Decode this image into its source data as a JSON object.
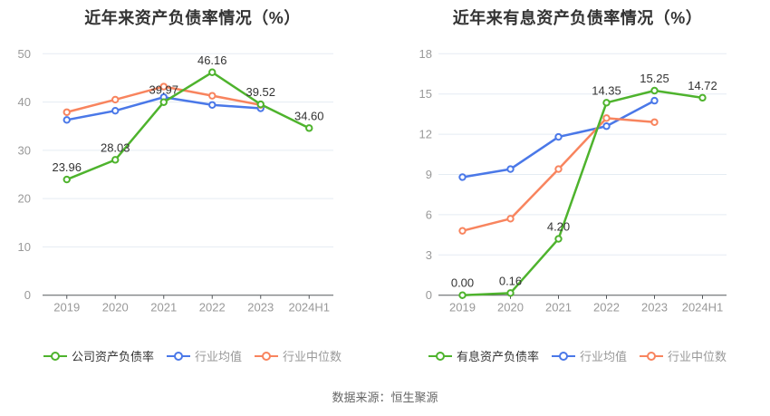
{
  "source_note": "数据来源：恒生聚源",
  "colors": {
    "green": "#4eb32d",
    "blue": "#4a78e8",
    "orange": "#f8845e",
    "grid": "#e5ecf3",
    "axis": "#55585c",
    "axis_text": "#999999",
    "point_label": "#333333",
    "legend_active_text": "#333333",
    "legend_inactive_text": "#999999",
    "title_text": "#333333"
  },
  "chart_data": [
    {
      "type": "line",
      "title": "近年来资产负债率情况（%）",
      "categories": [
        "2019",
        "2020",
        "2021",
        "2022",
        "2023",
        "2024H1"
      ],
      "ylim": [
        0,
        50
      ],
      "ystep": 10,
      "grid": true,
      "legend_position": "bottom",
      "series": [
        {
          "name": "公司资产负债率",
          "color": "#4eb32d",
          "values": [
            23.96,
            28.03,
            39.97,
            46.16,
            39.52,
            34.6
          ],
          "labels": [
            "23.96",
            "28.03",
            "39.97",
            "46.16",
            "39.52",
            "34.60"
          ]
        },
        {
          "name": "行业均值",
          "color": "#4a78e8",
          "values": [
            36.3,
            38.2,
            41.0,
            39.4,
            38.7,
            null
          ]
        },
        {
          "name": "行业中位数",
          "color": "#f8845e",
          "values": [
            37.9,
            40.5,
            43.2,
            41.3,
            39.4,
            null
          ]
        }
      ]
    },
    {
      "type": "line",
      "title": "近年来有息资产负债率情况（%）",
      "categories": [
        "2019",
        "2020",
        "2021",
        "2022",
        "2023",
        "2024H1"
      ],
      "ylim": [
        0,
        18
      ],
      "ystep": 3,
      "grid": true,
      "legend_position": "bottom",
      "series": [
        {
          "name": "有息资产负债率",
          "color": "#4eb32d",
          "values": [
            0.0,
            0.16,
            4.2,
            14.35,
            15.25,
            14.72
          ],
          "labels": [
            "0.00",
            "0.16",
            "4.20",
            "14.35",
            "15.25",
            "14.72"
          ]
        },
        {
          "name": "行业均值",
          "color": "#4a78e8",
          "values": [
            8.8,
            9.4,
            11.8,
            12.6,
            14.5,
            null
          ]
        },
        {
          "name": "行业中位数",
          "color": "#f8845e",
          "values": [
            4.8,
            5.7,
            9.4,
            13.2,
            12.9,
            null
          ]
        }
      ]
    }
  ]
}
